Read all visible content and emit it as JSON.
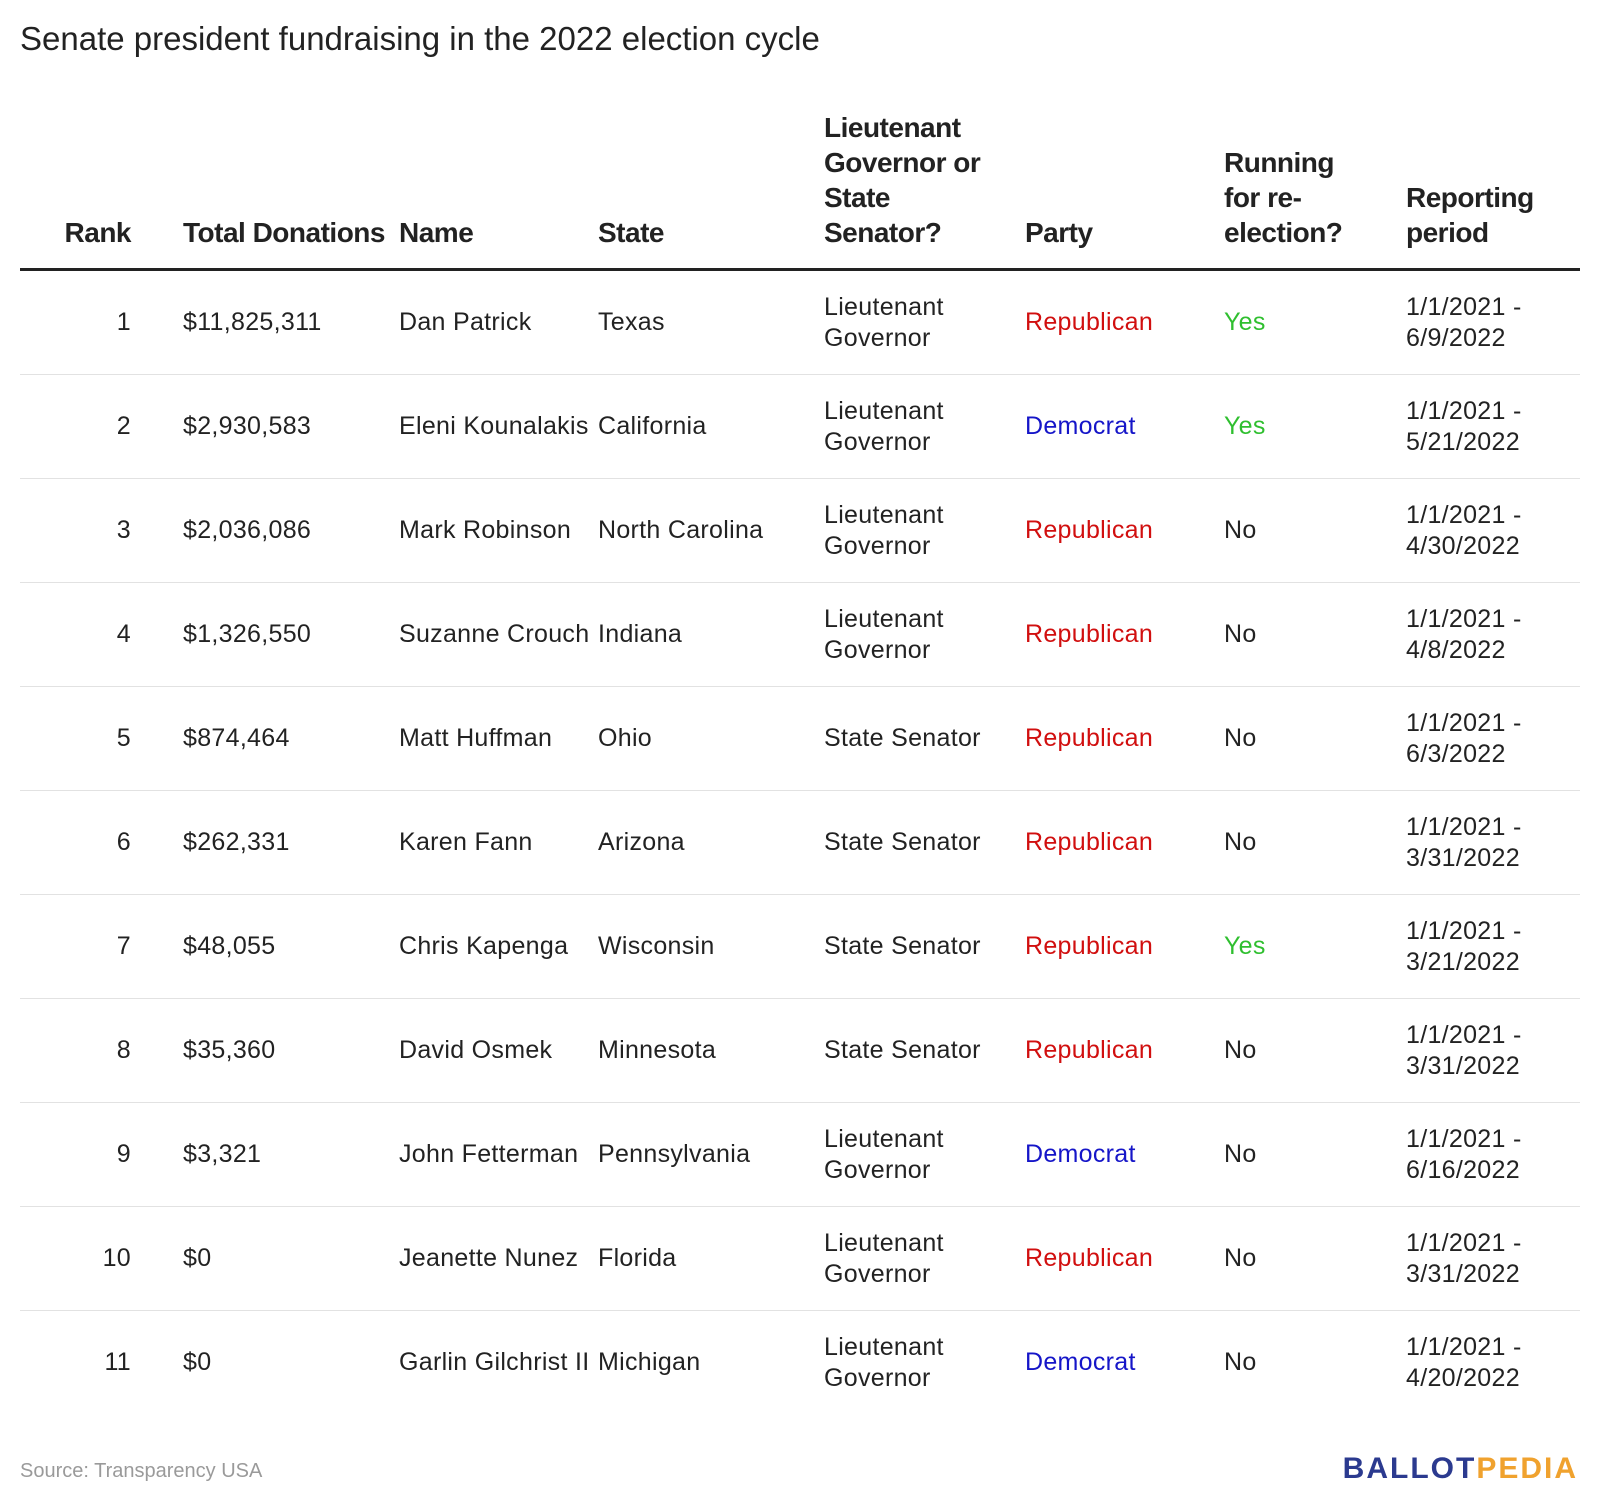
{
  "title": "Senate president fundraising in the 2022 election cycle",
  "colors": {
    "Republican": "#d10f0f",
    "Democrat": "#1515c8",
    "Yes": "#2fbf2f",
    "No": "#222222",
    "logo_primary": "#2b3a8f",
    "logo_accent": "#f0a22e"
  },
  "chart_data": {
    "type": "table",
    "title": "Senate president fundraising in the 2022 election cycle",
    "columns": [
      "Rank",
      "Total Donations",
      "Name",
      "State",
      "Lieutenant Governor or State Senator?",
      "Party",
      "Running for re-election?",
      "Reporting period"
    ],
    "rows": [
      [
        "1",
        "$11,825,311",
        "Dan Patrick",
        "Texas",
        "Lieutenant Governor",
        "Republican",
        "Yes",
        "1/1/2021 - 6/9/2022"
      ],
      [
        "2",
        "$2,930,583",
        "Eleni Kounalakis",
        "California",
        "Lieutenant Governor",
        "Democrat",
        "Yes",
        "1/1/2021 - 5/21/2022"
      ],
      [
        "3",
        "$2,036,086",
        "Mark Robinson",
        "North Carolina",
        "Lieutenant Governor",
        "Republican",
        "No",
        "1/1/2021 - 4/30/2022"
      ],
      [
        "4",
        "$1,326,550",
        "Suzanne Crouch",
        "Indiana",
        "Lieutenant Governor",
        "Republican",
        "No",
        "1/1/2021 - 4/8/2022"
      ],
      [
        "5",
        "$874,464",
        "Matt Huffman",
        "Ohio",
        "State Senator",
        "Republican",
        "No",
        "1/1/2021 - 6/3/2022"
      ],
      [
        "6",
        "$262,331",
        "Karen Fann",
        "Arizona",
        "State Senator",
        "Republican",
        "No",
        "1/1/2021 - 3/31/2022"
      ],
      [
        "7",
        "$48,055",
        "Chris Kapenga",
        "Wisconsin",
        "State Senator",
        "Republican",
        "Yes",
        "1/1/2021 - 3/21/2022"
      ],
      [
        "8",
        "$35,360",
        "David Osmek",
        "Minnesota",
        "State Senator",
        "Republican",
        "No",
        "1/1/2021 - 3/31/2022"
      ],
      [
        "9",
        "$3,321",
        "John Fetterman",
        "Pennsylvania",
        "Lieutenant Governor",
        "Democrat",
        "No",
        "1/1/2021 - 6/16/2022"
      ],
      [
        "10",
        "$0",
        "Jeanette Nunez",
        "Florida",
        "Lieutenant Governor",
        "Republican",
        "No",
        "1/1/2021 - 3/31/2022"
      ],
      [
        "11",
        "$0",
        "Garlin Gilchrist II",
        "Michigan",
        "Lieutenant Governor",
        "Democrat",
        "No",
        "1/1/2021 - 4/20/2022"
      ]
    ]
  },
  "footer": {
    "source": "Source: Transparency USA",
    "logo_part1": "BALLOT",
    "logo_part2": "PEDIA"
  }
}
